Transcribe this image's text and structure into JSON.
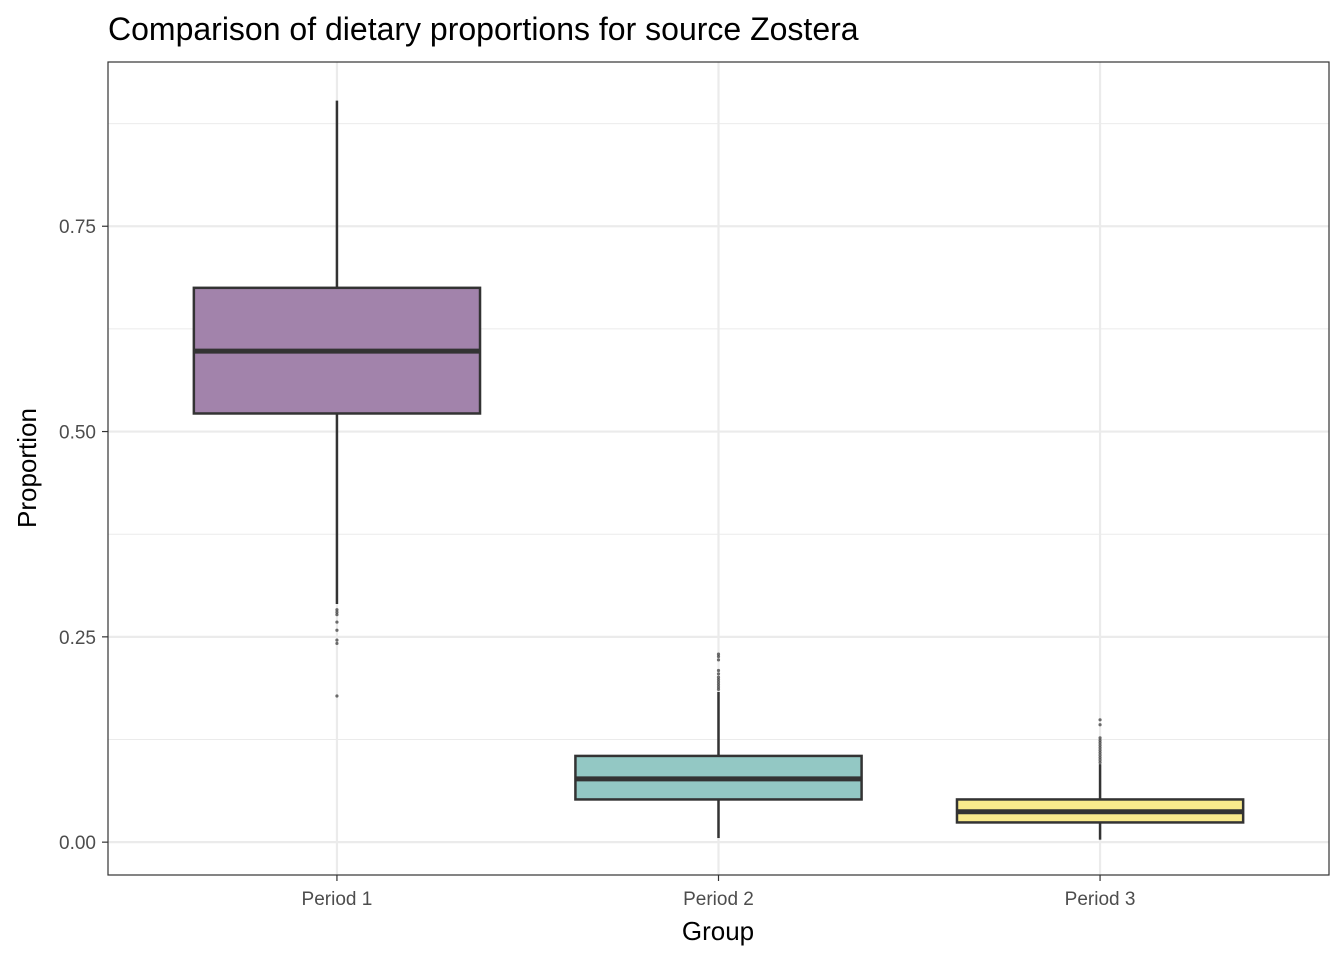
{
  "chart_data": {
    "type": "boxplot",
    "title": "Comparison of dietary proportions for source Zostera",
    "xlabel": "Group",
    "ylabel": "Proportion",
    "ylim": [
      -0.04,
      0.95
    ],
    "yticks": [
      0.0,
      0.25,
      0.5,
      0.75
    ],
    "ytick_labels": [
      "0.00",
      "0.25",
      "0.50",
      "0.75"
    ],
    "grid": true,
    "categories": [
      "Period 1",
      "Period 2",
      "Period 3"
    ],
    "boxes": [
      {
        "category": "Period 1",
        "color": "#a283ab",
        "whisker_low": 0.29,
        "q1": 0.522,
        "median": 0.598,
        "q3": 0.675,
        "whisker_high": 0.903,
        "outliers": [
          0.283,
          0.28,
          0.277,
          0.268,
          0.258,
          0.246,
          0.242,
          0.178
        ]
      },
      {
        "category": "Period 2",
        "color": "#93c8c4",
        "whisker_low": 0.005,
        "q1": 0.052,
        "median": 0.077,
        "q3": 0.105,
        "whisker_high": 0.183,
        "outliers": [
          0.186,
          0.189,
          0.192,
          0.195,
          0.198,
          0.201,
          0.205,
          0.209,
          0.222,
          0.226,
          0.229
        ]
      },
      {
        "category": "Period 3",
        "color": "#f9ea8c",
        "whisker_low": 0.003,
        "q1": 0.024,
        "median": 0.037,
        "q3": 0.052,
        "whisker_high": 0.095,
        "outliers": [
          0.097,
          0.1,
          0.103,
          0.106,
          0.109,
          0.112,
          0.115,
          0.118,
          0.121,
          0.124,
          0.127,
          0.143,
          0.149
        ]
      }
    ]
  }
}
